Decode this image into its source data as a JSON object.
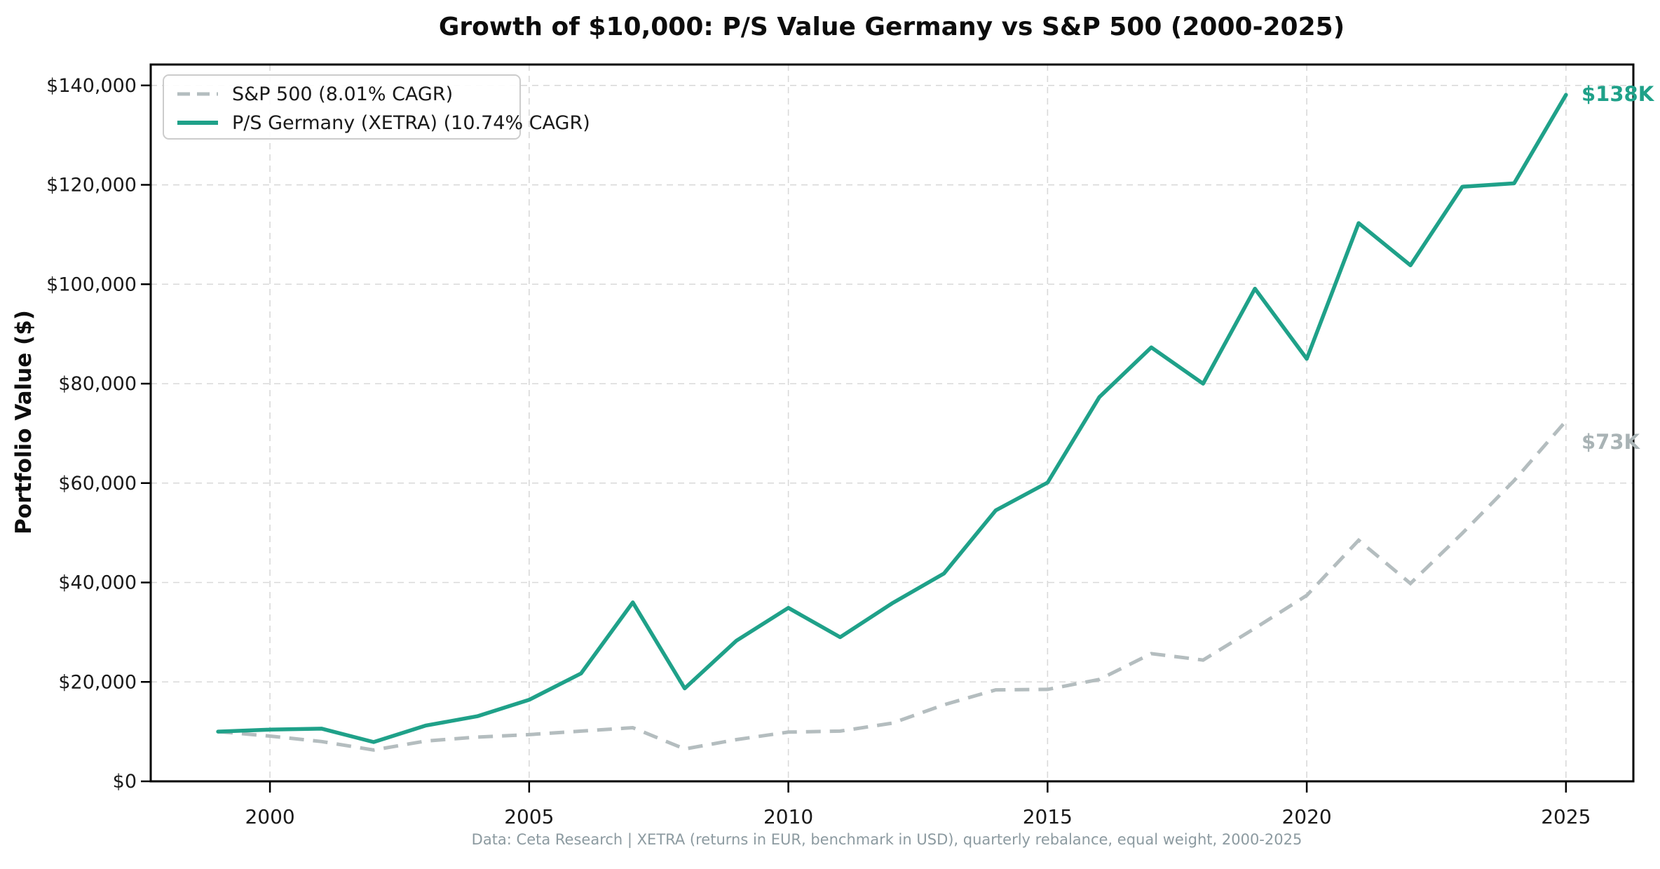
{
  "header": {
    "title": "Growth of $10,000: P/S Value Germany vs S&P 500 (2000-2025)"
  },
  "y_axis": {
    "label": "Portfolio Value ($)"
  },
  "legend": {
    "items": [
      {
        "label": "S&P 500 (8.01% CAGR)",
        "style": "dashed",
        "color": "#b4bdbf"
      },
      {
        "label": "P/S Germany (XETRA) (10.74% CAGR)",
        "style": "solid",
        "color": "#1fa189"
      }
    ]
  },
  "annotations": {
    "germany_end_label": "$138K",
    "sp500_end_label": "$73K"
  },
  "footer": {
    "caption": "Data: Ceta Research | XETRA (returns in EUR, benchmark in USD), quarterly rebalance, equal weight, 2000-2025"
  },
  "colors": {
    "germany_line": "#1fa189",
    "sp500_line": "#b4bdbf",
    "sp500_end_label": "#a9b3b5",
    "grid": "#d9d9d9",
    "spine": "#000000",
    "caption": "#8c9aa0"
  },
  "chart_data": {
    "type": "line",
    "title": "Growth of $10,000: P/S Value Germany vs S&P 500 (2000-2025)",
    "xlabel": "",
    "ylabel": "Portfolio Value ($)",
    "x": [
      1999,
      2000,
      2001,
      2002,
      2003,
      2004,
      2005,
      2006,
      2007,
      2008,
      2009,
      2010,
      2011,
      2012,
      2013,
      2014,
      2015,
      2016,
      2017,
      2018,
      2019,
      2020,
      2021,
      2022,
      2023,
      2024,
      2025
    ],
    "series": [
      {
        "name": "S&P 500 (8.01% CAGR)",
        "style": "dashed",
        "color": "#b4bdbf",
        "values": [
          10000,
          9100,
          8000,
          6300,
          8100,
          8900,
          9400,
          10100,
          10800,
          6500,
          8400,
          9900,
          10100,
          11700,
          15400,
          18400,
          18500,
          20500,
          25700,
          24400,
          30800,
          37400,
          48500,
          39800,
          49900,
          60500,
          72500
        ]
      },
      {
        "name": "P/S Germany (XETRA) (10.74% CAGR)",
        "style": "solid",
        "color": "#1fa189",
        "values": [
          10000,
          10400,
          10600,
          7900,
          11200,
          13100,
          16400,
          21700,
          36000,
          18700,
          28300,
          34900,
          29000,
          35800,
          41800,
          54500,
          60100,
          77300,
          87300,
          80000,
          99100,
          85000,
          112300,
          103800,
          119600,
          120300,
          138100
        ]
      }
    ],
    "x_ticks": {
      "values": [
        2000,
        2005,
        2010,
        2015,
        2020,
        2025
      ],
      "labels": [
        "2000",
        "2005",
        "2010",
        "2015",
        "2020",
        "2025"
      ]
    },
    "y_ticks": {
      "values": [
        0,
        20000,
        40000,
        60000,
        80000,
        100000,
        120000,
        140000
      ],
      "labels": [
        "$0",
        "$20,000",
        "$40,000",
        "$60,000",
        "$80,000",
        "$100,000",
        "$120,000",
        "$140,000"
      ]
    },
    "xlim": [
      1997.7,
      2026.3
    ],
    "ylim": [
      0,
      144200
    ],
    "grid": true,
    "grid_style": "dashed",
    "legend_position": "upper left",
    "end_value_labels": [
      {
        "series": "P/S Germany (XETRA)",
        "text": "$138K"
      },
      {
        "series": "S&P 500",
        "text": "$73K"
      }
    ]
  }
}
